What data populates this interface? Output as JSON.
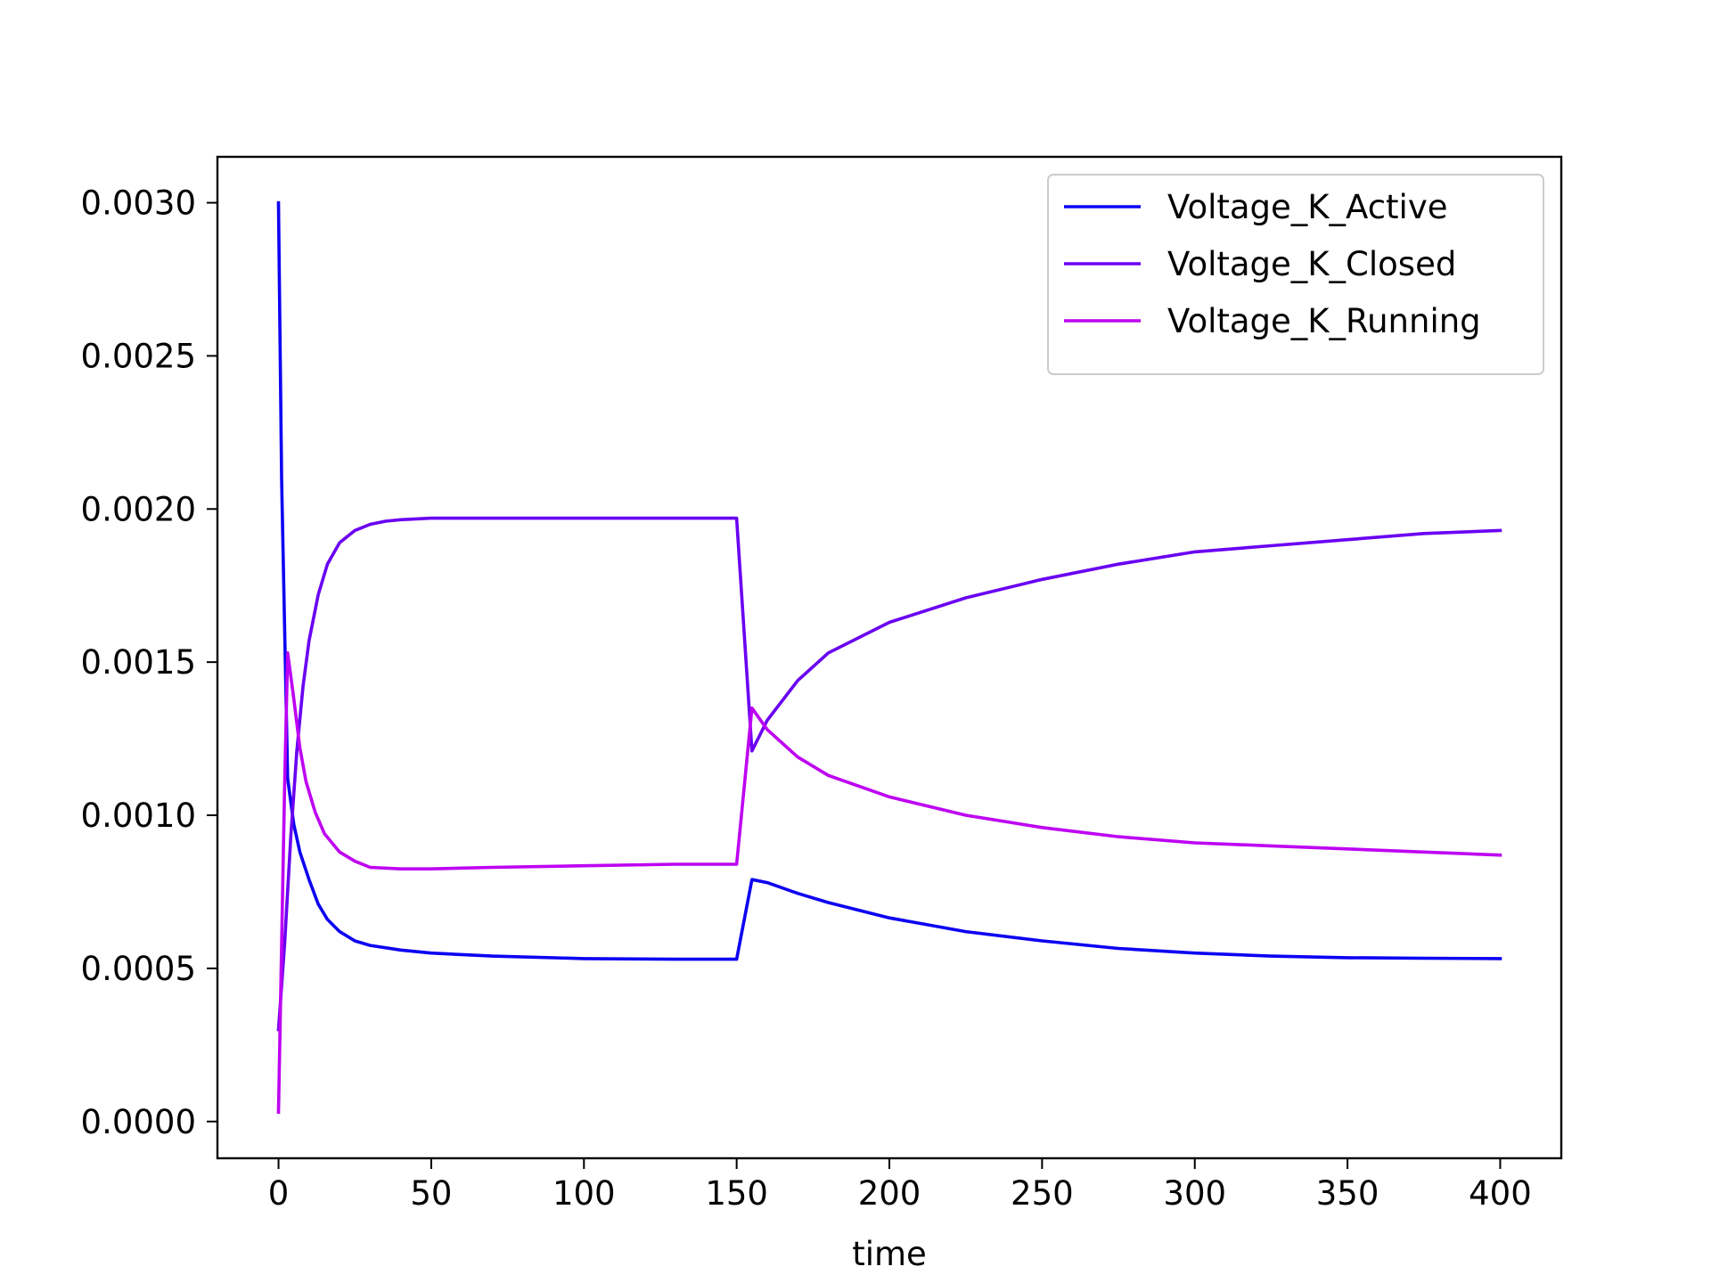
{
  "chart_data": {
    "type": "line",
    "title": "",
    "xlabel": "time",
    "ylabel": "",
    "xlim": [
      -20,
      420
    ],
    "ylim": [
      -0.00012,
      0.00315
    ],
    "x_ticks": [
      0,
      50,
      100,
      150,
      200,
      250,
      300,
      350,
      400
    ],
    "x_tick_labels": [
      "0",
      "50",
      "100",
      "150",
      "200",
      "250",
      "300",
      "350",
      "400"
    ],
    "y_ticks": [
      0.0,
      0.0005,
      0.001,
      0.0015,
      0.002,
      0.0025,
      0.003
    ],
    "y_tick_labels": [
      "0.0000",
      "0.0005",
      "0.0010",
      "0.0015",
      "0.0020",
      "0.0025",
      "0.0030"
    ],
    "grid": false,
    "legend_position": "top-right",
    "series": [
      {
        "name": "Voltage_K_Active",
        "color": "#0d00f2",
        "x": [
          0,
          1,
          3,
          5,
          7,
          10,
          13,
          16,
          20,
          25,
          30,
          40,
          50,
          70,
          100,
          130,
          150,
          155,
          160,
          170,
          180,
          200,
          225,
          250,
          275,
          300,
          325,
          350,
          375,
          400
        ],
        "y": [
          0.003,
          0.0021,
          0.00112,
          0.00097,
          0.00088,
          0.00079,
          0.00071,
          0.00066,
          0.00062,
          0.00059,
          0.000575,
          0.00056,
          0.00055,
          0.00054,
          0.000532,
          0.00053,
          0.00053,
          0.00079,
          0.00078,
          0.000745,
          0.000715,
          0.000665,
          0.00062,
          0.00059,
          0.000565,
          0.00055,
          0.00054,
          0.000535,
          0.000533,
          0.000532
        ]
      },
      {
        "name": "Voltage_K_Closed",
        "color": "#6a00f2",
        "x": [
          0,
          2,
          4,
          6,
          8,
          10,
          13,
          16,
          20,
          25,
          30,
          35,
          40,
          50,
          70,
          100,
          130,
          150,
          155,
          160,
          170,
          180,
          200,
          225,
          250,
          275,
          300,
          325,
          350,
          375,
          400
        ],
        "y": [
          0.0003,
          0.00058,
          0.00093,
          0.00121,
          0.00142,
          0.00157,
          0.00172,
          0.00182,
          0.00189,
          0.00193,
          0.00195,
          0.00196,
          0.001965,
          0.00197,
          0.00197,
          0.00197,
          0.00197,
          0.00197,
          0.00121,
          0.00131,
          0.00144,
          0.00153,
          0.00163,
          0.00171,
          0.00177,
          0.00182,
          0.00186,
          0.00188,
          0.0019,
          0.00192,
          0.00193
        ]
      },
      {
        "name": "Voltage_K_Running",
        "color": "#be00f2",
        "x": [
          0,
          2,
          3,
          5,
          7,
          9,
          12,
          15,
          20,
          25,
          30,
          40,
          50,
          70,
          100,
          130,
          150,
          155,
          160,
          170,
          180,
          200,
          225,
          250,
          275,
          300,
          325,
          350,
          375,
          400
        ],
        "y": [
          3e-05,
          0.0011,
          0.00153,
          0.00138,
          0.00122,
          0.00111,
          0.00101,
          0.00094,
          0.00088,
          0.00085,
          0.00083,
          0.000825,
          0.000825,
          0.00083,
          0.000835,
          0.00084,
          0.00084,
          0.00135,
          0.00128,
          0.00119,
          0.00113,
          0.00106,
          0.001,
          0.00096,
          0.00093,
          0.00091,
          0.0009,
          0.00089,
          0.00088,
          0.00087
        ]
      }
    ]
  }
}
